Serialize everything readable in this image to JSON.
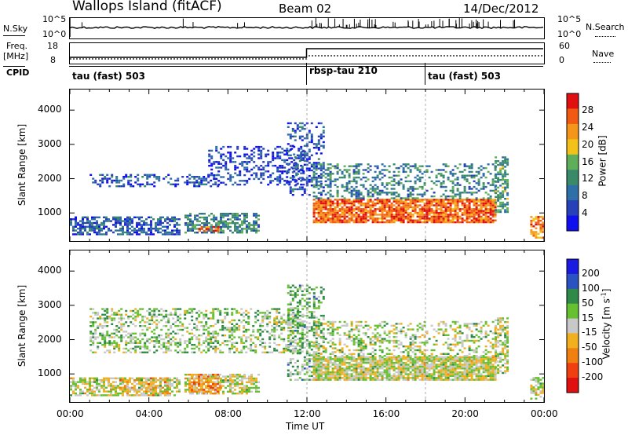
{
  "header": {
    "station": "Wallops Island (fitACF)",
    "beam": "Beam 02",
    "date": "14/Dec/2012"
  },
  "sky_panel": {
    "left_label": "N.Sky",
    "right_label": "N.Search",
    "left_top_tick": "10^5",
    "left_bottom_tick": "10^0",
    "right_top_tick": "10^5",
    "right_bottom_tick": "10^0"
  },
  "freq_panel": {
    "left_label_1": "Freq.",
    "left_label_2": "[MHz]",
    "right_label": "Nave",
    "left_top_tick": "18",
    "left_bottom_tick": "8",
    "right_top_tick": "60",
    "right_bottom_tick": "0"
  },
  "cpid_panel": {
    "label": "CPID",
    "segments": [
      {
        "name": "tau (fast) 503",
        "start_hour": 0
      },
      {
        "name": "rbsp-tau 210",
        "start_hour": 12
      },
      {
        "name": "tau (fast) 503",
        "start_hour": 18
      }
    ]
  },
  "colors": {
    "power": [
      "#1010ee",
      "#2840b8",
      "#2f6fa8",
      "#3a8a6a",
      "#5fae5a",
      "#f2c21a",
      "#f5951a",
      "#f05a12",
      "#e01010"
    ],
    "velocity": [
      "#1a1ae0",
      "#2a52c0",
      "#2f8a4a",
      "#66c030",
      "#c8c8c8",
      "#f0b020",
      "#f08010",
      "#f04010",
      "#e01010"
    ]
  },
  "chart_data": [
    {
      "type": "heatmap",
      "name": "power",
      "ylabel": "Slant Range [km]",
      "xlabel": "",
      "x_ticks": [
        "00:00",
        "04:00",
        "08:00",
        "12:00",
        "16:00",
        "20:00",
        "00:00"
      ],
      "y_ticks": [
        1000,
        2000,
        3000,
        4000
      ],
      "xlim_hours": [
        0,
        24
      ],
      "ylim_km": [
        180,
        4600
      ],
      "colorbar": {
        "label": "Power [dB]",
        "ticks": [
          4,
          8,
          12,
          16,
          20,
          24,
          28
        ],
        "range": [
          0,
          32
        ]
      },
      "regions": [
        {
          "t0": 0.0,
          "t1": 5.5,
          "r0": 350,
          "r1": 850,
          "level": 0.22,
          "density": 0.6
        },
        {
          "t0": 1.0,
          "t1": 7.5,
          "r0": 1750,
          "r1": 2100,
          "level": 0.2,
          "density": 0.35
        },
        {
          "t0": 5.8,
          "t1": 9.5,
          "r0": 400,
          "r1": 1000,
          "level": 0.35,
          "density": 0.6
        },
        {
          "t0": 6.5,
          "t1": 7.5,
          "r0": 450,
          "r1": 600,
          "level": 0.8,
          "density": 0.7
        },
        {
          "t0": 7.0,
          "t1": 11.8,
          "r0": 1800,
          "r1": 2900,
          "level": 0.15,
          "density": 0.35
        },
        {
          "t0": 11.0,
          "t1": 12.8,
          "r0": 1500,
          "r1": 3600,
          "level": 0.2,
          "density": 0.3
        },
        {
          "t0": 12.3,
          "t1": 21.5,
          "r0": 700,
          "r1": 1400,
          "level": 0.82,
          "density": 0.85
        },
        {
          "t0": 12.3,
          "t1": 21.5,
          "r0": 1400,
          "r1": 2400,
          "level": 0.35,
          "density": 0.35
        },
        {
          "t0": 21.5,
          "t1": 22.2,
          "r0": 1000,
          "r1": 2600,
          "level": 0.4,
          "density": 0.6
        },
        {
          "t0": 23.3,
          "t1": 24.0,
          "r0": 250,
          "r1": 900,
          "level": 0.75,
          "density": 0.6
        }
      ]
    },
    {
      "type": "heatmap",
      "name": "velocity",
      "ylabel": "Slant Range [km]",
      "xlabel": "Time UT",
      "x_ticks": [
        "00:00",
        "04:00",
        "08:00",
        "12:00",
        "16:00",
        "20:00",
        "00:00"
      ],
      "y_ticks": [
        1000,
        2000,
        3000,
        4000
      ],
      "xlim_hours": [
        0,
        24
      ],
      "ylim_km": [
        180,
        4600
      ],
      "colorbar": {
        "label": "Velocity [m s^-1]",
        "ticks": [
          200,
          100,
          50,
          15,
          -15,
          -50,
          -100,
          -200
        ],
        "range": [
          -250,
          250
        ]
      },
      "regions": [
        {
          "t0": 0.0,
          "t1": 5.5,
          "r0": 350,
          "r1": 850,
          "level": 0.5,
          "density": 0.65
        },
        {
          "t0": 2.5,
          "t1": 5.0,
          "r0": 350,
          "r1": 850,
          "level": 0.62,
          "density": 0.35
        },
        {
          "t0": 5.8,
          "t1": 9.5,
          "r0": 400,
          "r1": 1000,
          "level": 0.5,
          "density": 0.55
        },
        {
          "t0": 6.0,
          "t1": 7.6,
          "r0": 400,
          "r1": 1000,
          "level": 0.66,
          "density": 0.8
        },
        {
          "t0": 1.0,
          "t1": 11.8,
          "r0": 1600,
          "r1": 2900,
          "level": 0.42,
          "density": 0.4
        },
        {
          "t0": 11.0,
          "t1": 12.8,
          "r0": 800,
          "r1": 3600,
          "level": 0.38,
          "density": 0.4
        },
        {
          "t0": 12.3,
          "t1": 21.5,
          "r0": 800,
          "r1": 1500,
          "level": 0.5,
          "density": 0.9
        },
        {
          "t0": 12.3,
          "t1": 21.5,
          "r0": 1500,
          "r1": 2500,
          "level": 0.46,
          "density": 0.35
        },
        {
          "t0": 21.5,
          "t1": 22.2,
          "r0": 1000,
          "r1": 2600,
          "level": 0.48,
          "density": 0.6
        },
        {
          "t0": 23.3,
          "t1": 24.0,
          "r0": 250,
          "r1": 900,
          "level": 0.5,
          "density": 0.6
        }
      ]
    }
  ]
}
